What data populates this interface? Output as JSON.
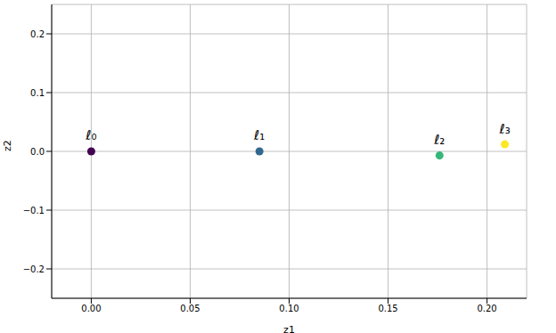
{
  "chart_data": {
    "type": "scatter",
    "x_label": "z1",
    "y_label": "z2",
    "x": [
      0.0,
      0.085,
      0.176,
      0.209
    ],
    "values": [
      0.0,
      0.0,
      -0.007,
      0.012
    ],
    "labels": [
      "ℓ₀",
      "ℓ₁",
      "ℓ₂",
      "ℓ₃"
    ],
    "colors": [
      "#440154",
      "#31688e",
      "#35b779",
      "#fde725"
    ],
    "marker": "circle",
    "xlim": [
      -0.02,
      0.22
    ],
    "ylim": [
      -0.25,
      0.25
    ],
    "xticks": [
      {
        "value": 0,
        "label": "0.00"
      },
      {
        "value": 0.05,
        "label": "0.05"
      },
      {
        "value": 0.1,
        "label": "0.10"
      },
      {
        "value": 0.15,
        "label": "0.15"
      },
      {
        "value": 0.2,
        "label": "0.20"
      }
    ],
    "yticks": [
      {
        "value": -0.2,
        "label": "−0.2"
      },
      {
        "value": -0.1,
        "label": "−0.1"
      },
      {
        "value": 0,
        "label": "0.0"
      },
      {
        "value": 0.1,
        "label": "0.1"
      },
      {
        "value": 0.2,
        "label": "0.2"
      }
    ],
    "grid": true
  }
}
